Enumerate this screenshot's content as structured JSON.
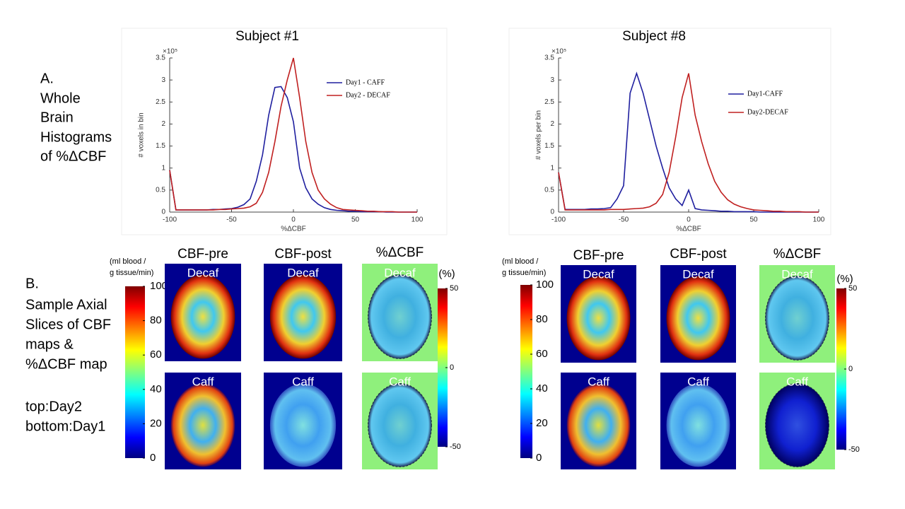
{
  "chart_data": [
    {
      "type": "line",
      "title": "Subject #1",
      "x_label": "%ΔCBF",
      "y_label": "# voxels in bin",
      "y_multiplier": "×10⁵",
      "x": [
        -100,
        -95,
        -90,
        -85,
        -80,
        -75,
        -70,
        -65,
        -60,
        -55,
        -50,
        -45,
        -40,
        -35,
        -30,
        -25,
        -20,
        -15,
        -10,
        -5,
        0,
        5,
        10,
        15,
        20,
        25,
        30,
        35,
        40,
        45,
        50,
        55,
        60,
        65,
        70,
        75,
        80,
        85,
        90,
        95,
        100
      ],
      "series": [
        {
          "name": "Day1 - CAFF",
          "color": "#1f1f9f",
          "values": [
            0.95,
            0.05,
            0.05,
            0.05,
            0.05,
            0.05,
            0.05,
            0.06,
            0.06,
            0.07,
            0.08,
            0.11,
            0.17,
            0.3,
            0.7,
            1.3,
            2.2,
            2.83,
            2.85,
            2.6,
            2.05,
            1.0,
            0.55,
            0.3,
            0.18,
            0.1,
            0.06,
            0.04,
            0.03,
            0.02,
            0.02,
            0.01,
            0.01,
            0.01,
            0.01,
            0,
            0,
            0,
            0,
            0,
            0
          ]
        },
        {
          "name": "Day2 - DECAF",
          "color": "#c02020",
          "values": [
            0.95,
            0.05,
            0.05,
            0.05,
            0.05,
            0.05,
            0.05,
            0.05,
            0.06,
            0.06,
            0.07,
            0.08,
            0.09,
            0.12,
            0.2,
            0.45,
            0.9,
            1.6,
            2.4,
            3.0,
            3.5,
            2.6,
            1.6,
            0.9,
            0.5,
            0.3,
            0.18,
            0.1,
            0.06,
            0.05,
            0.04,
            0.03,
            0.02,
            0.02,
            0.01,
            0.01,
            0.01,
            0,
            0,
            0,
            0
          ]
        }
      ],
      "xlim": [
        -100,
        100
      ],
      "xticks": [
        -100,
        -50,
        0,
        50,
        100
      ],
      "ylim": [
        0,
        3.5
      ],
      "yticks": [
        0,
        0.5,
        1,
        1.5,
        2,
        2.5,
        3,
        3.5
      ],
      "legend": "upper right"
    },
    {
      "type": "line",
      "title": "Subject #8",
      "x_label": "%ΔCBF",
      "y_label": "# voxels per bin",
      "y_multiplier": "×10⁵",
      "x": [
        -100,
        -95,
        -90,
        -85,
        -80,
        -75,
        -70,
        -65,
        -60,
        -55,
        -50,
        -45,
        -40,
        -35,
        -30,
        -25,
        -20,
        -15,
        -10,
        -5,
        0,
        5,
        10,
        15,
        20,
        25,
        30,
        35,
        40,
        45,
        50,
        55,
        60,
        65,
        70,
        75,
        80,
        85,
        90,
        95,
        100
      ],
      "series": [
        {
          "name": "Day1-CAFF",
          "color": "#1f1f9f",
          "values": [
            0.9,
            0.06,
            0.06,
            0.06,
            0.06,
            0.07,
            0.07,
            0.08,
            0.1,
            0.3,
            0.6,
            2.7,
            3.15,
            2.7,
            2.1,
            1.5,
            1.0,
            0.55,
            0.3,
            0.15,
            0.5,
            0.08,
            0.05,
            0.04,
            0.03,
            0.02,
            0.02,
            0.01,
            0.01,
            0.01,
            0.01,
            0,
            0,
            0,
            0,
            0,
            0,
            0,
            0,
            0,
            0
          ]
        },
        {
          "name": "Day2-DECAF",
          "color": "#c02020",
          "values": [
            0.9,
            0.05,
            0.05,
            0.05,
            0.05,
            0.05,
            0.05,
            0.05,
            0.06,
            0.06,
            0.06,
            0.07,
            0.08,
            0.09,
            0.12,
            0.2,
            0.4,
            0.9,
            1.7,
            2.6,
            3.15,
            2.2,
            1.6,
            1.1,
            0.7,
            0.45,
            0.28,
            0.18,
            0.12,
            0.08,
            0.05,
            0.04,
            0.03,
            0.02,
            0.02,
            0.01,
            0.01,
            0.01,
            0,
            0,
            0
          ]
        }
      ],
      "xlim": [
        -100,
        100
      ],
      "xticks": [
        -100,
        -50,
        0,
        50,
        100
      ],
      "ylim": [
        0,
        3.5
      ],
      "yticks": [
        0,
        0.5,
        1,
        1.5,
        2,
        2.5,
        3,
        3.5
      ],
      "legend": "upper right"
    }
  ],
  "panel_a": {
    "label": "A.",
    "lines": [
      "Whole",
      "Brain",
      "Histograms",
      "of %ΔCBF"
    ]
  },
  "panel_b": {
    "label": "B.",
    "lines": [
      "Sample Axial",
      "Slices of CBF",
      "maps &",
      "%ΔCBF map"
    ],
    "note_lines": [
      "top:Day2",
      "bottom:Day1"
    ]
  },
  "image_panels": [
    {
      "unit_lines": [
        "(ml blood /",
        "g tissue/min)"
      ],
      "colorbar_ticks": [
        100,
        80,
        60,
        40,
        20,
        0
      ],
      "columns": [
        "CBF-pre",
        "CBF-post",
        "%ΔCBF"
      ],
      "rows": [
        "Decaf",
        "Caff"
      ],
      "pct_unit": "(%)",
      "pct_ticks": [
        50,
        0,
        -50
      ]
    },
    {
      "unit_lines": [
        "(ml blood /",
        "g tissue/min)"
      ],
      "colorbar_ticks": [
        100,
        80,
        60,
        40,
        20,
        0
      ],
      "columns": [
        "CBF-pre",
        "CBF-post",
        "%ΔCBF"
      ],
      "rows": [
        "Decaf",
        "Caff"
      ],
      "pct_unit": "(%)",
      "pct_ticks": [
        50,
        0,
        -50
      ]
    }
  ]
}
